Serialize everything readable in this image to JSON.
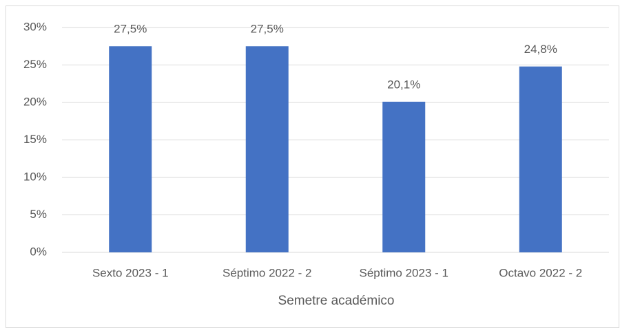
{
  "chart_data": {
    "type": "bar",
    "categories": [
      "Sexto 2023 - 1",
      "Séptimo 2022 - 2",
      "Séptimo 2023 - 1",
      "Octavo 2022 - 2"
    ],
    "values": [
      27.5,
      27.5,
      20.1,
      24.8
    ],
    "value_labels": [
      "27,5%",
      "27,5%",
      "20,1%",
      "24,8%"
    ],
    "color": "#4472c4",
    "x_label": "Semetre académico",
    "ylim": [
      0,
      30
    ],
    "yticks": [
      {
        "value": 0,
        "label": "0%"
      },
      {
        "value": 5,
        "label": "5%"
      },
      {
        "value": 10,
        "label": "10%"
      },
      {
        "value": 15,
        "label": "15%"
      },
      {
        "value": 20,
        "label": "20%"
      },
      {
        "value": 25,
        "label": "25%"
      },
      {
        "value": 30,
        "label": "30%"
      }
    ],
    "grid": true
  }
}
